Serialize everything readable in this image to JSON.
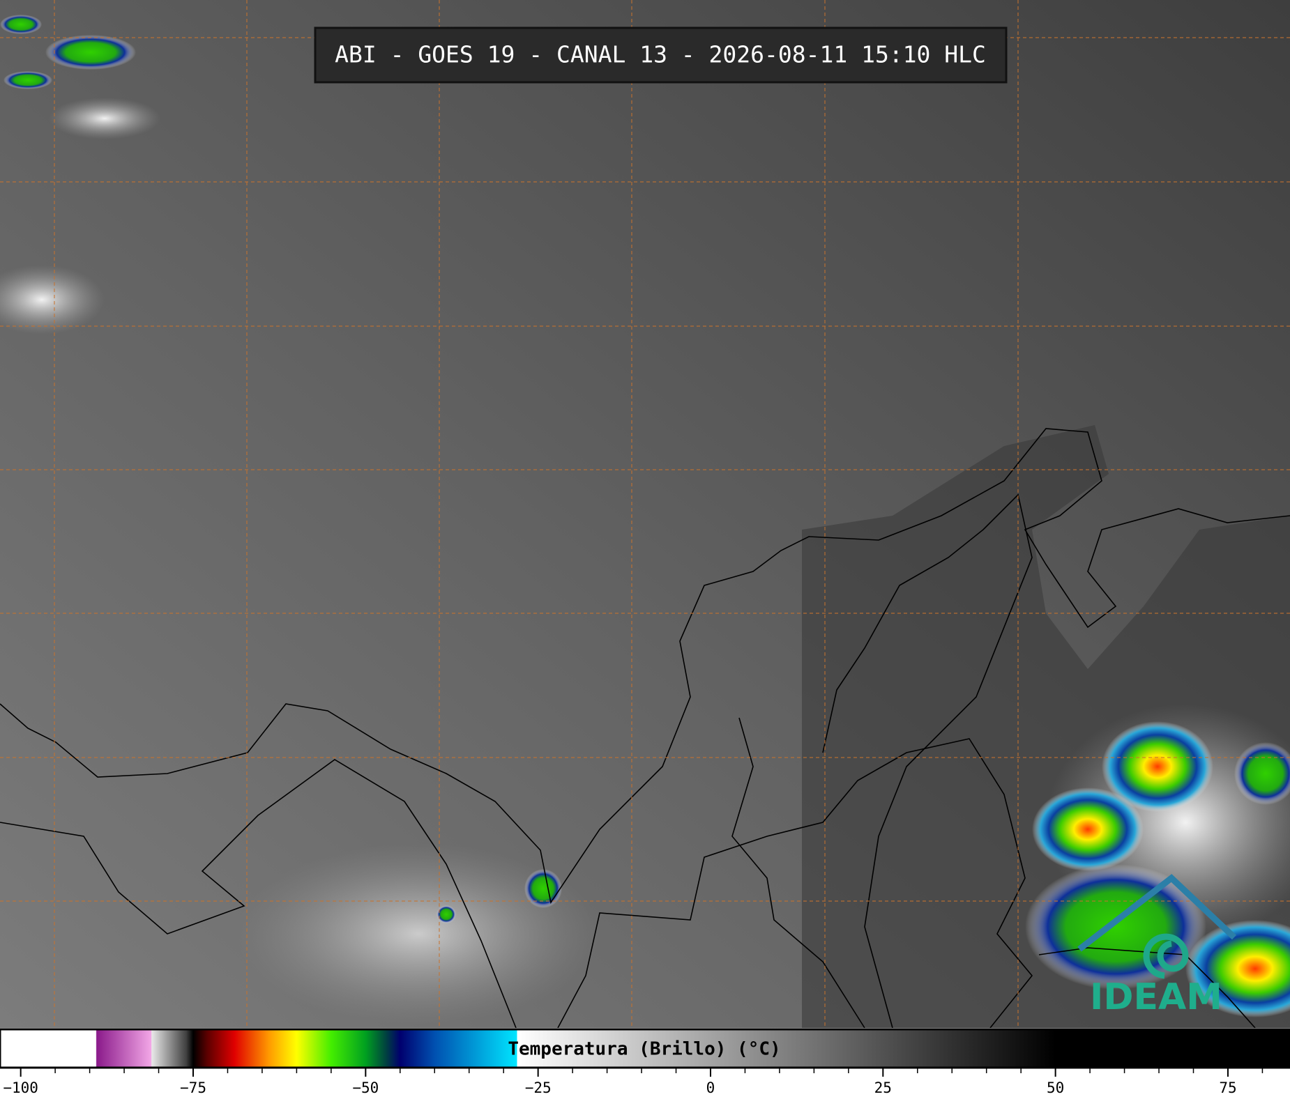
{
  "title": "ABI - GOES 19 - CANAL 13 - 2026-08-11 15:10 HLC",
  "logo": "IDEAM",
  "colorbar": {
    "label": "Temperatura (Brillo) (°C)",
    "clim": [
      -103,
      84
    ],
    "ticks": [
      {
        "value": -100,
        "label": "−100"
      },
      {
        "value": -75,
        "label": "−75"
      },
      {
        "value": -50,
        "label": "−50"
      },
      {
        "value": -25,
        "label": "−25"
      },
      0,
      25,
      50,
      75
    ],
    "minor_ticks": [
      -95,
      -90,
      -85,
      -80,
      -70,
      -65,
      -60,
      -55,
      -45,
      -40,
      -35,
      -30,
      -20,
      -15,
      -10,
      -5,
      5,
      10,
      15,
      20,
      30,
      35,
      40,
      45,
      55,
      60,
      65,
      70,
      80
    ],
    "colormap": [
      {
        "value": -103,
        "color": "#ffffff"
      },
      {
        "value": -89.1,
        "color": "#ffffff"
      },
      {
        "value": -89,
        "color": "#8a1a8a"
      },
      {
        "value": -81.1,
        "color": "#f2a6e6"
      },
      {
        "value": -81,
        "color": "#e8e8e8"
      },
      {
        "value": -76,
        "color": "#404040"
      },
      {
        "value": -75,
        "color": "#000000"
      },
      {
        "value": -73,
        "color": "#5a0000"
      },
      {
        "value": -69,
        "color": "#e00000"
      },
      {
        "value": -64,
        "color": "#ff9a00"
      },
      {
        "value": -60,
        "color": "#ffff00"
      },
      {
        "value": -55,
        "color": "#44ee00"
      },
      {
        "value": -50,
        "color": "#00a020"
      },
      {
        "value": -47,
        "color": "#004040"
      },
      {
        "value": -45,
        "color": "#00006e"
      },
      {
        "value": -40,
        "color": "#0050b0"
      },
      {
        "value": -28.1,
        "color": "#00e5ff"
      },
      {
        "value": -28,
        "color": "#ffffff"
      },
      {
        "value": 50,
        "color": "#000000"
      },
      {
        "value": 84,
        "color": "#000000"
      }
    ]
  }
}
